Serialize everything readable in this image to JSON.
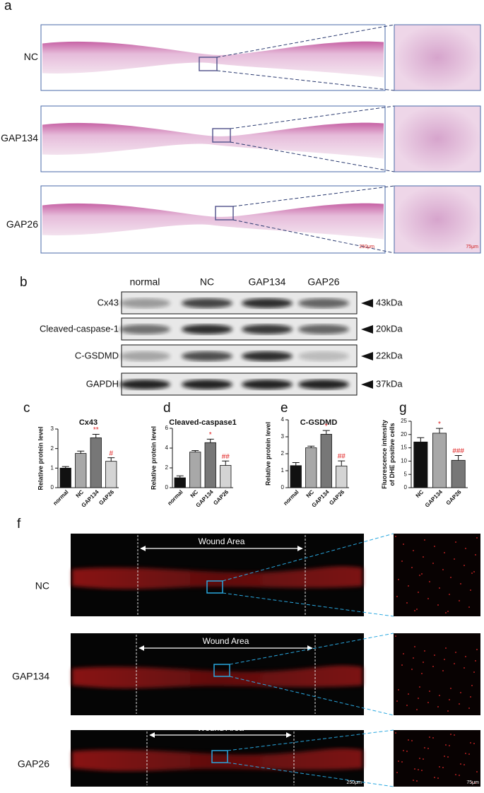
{
  "panel_a": {
    "label": "a",
    "rows": [
      "NC",
      "GAP134",
      "GAP26"
    ],
    "scale_main": "250μm",
    "scale_zoom": "75μm"
  },
  "panel_b": {
    "label": "b",
    "lanes": [
      "normal",
      "NC",
      "GAP134",
      "GAP26"
    ],
    "proteins": [
      {
        "name": "Cx43",
        "size": "43kDa"
      },
      {
        "name": "Cleaved-caspase-1",
        "size": "20kDa"
      },
      {
        "name": "C-GSDMD",
        "size": "22kDa"
      },
      {
        "name": "GAPDH",
        "size": "37kDa"
      }
    ]
  },
  "chart_data": [
    {
      "label": "c",
      "type": "bar",
      "title": "Cx43",
      "ylabel": [
        "Relative protein level"
      ],
      "categories": [
        "normal",
        "NC",
        "GAP134",
        "GAP26"
      ],
      "values": [
        1.0,
        1.75,
        2.55,
        1.35
      ],
      "errors": [
        0.08,
        0.12,
        0.18,
        0.18
      ],
      "colors": [
        "#111111",
        "#a8a8a8",
        "#777777",
        "#d4d4d4"
      ],
      "annotations": [
        null,
        null,
        "**",
        "#"
      ],
      "annotation_color": "#e02020",
      "ylim": [
        0,
        3
      ],
      "yticks": [
        0,
        1,
        2,
        3
      ]
    },
    {
      "label": "d",
      "type": "bar",
      "title": "Cleaved-caspase1",
      "ylabel": [
        "Relative protein level"
      ],
      "categories": [
        "normal",
        "NC",
        "GAP134",
        "GAP26"
      ],
      "values": [
        1.0,
        3.6,
        4.55,
        2.25
      ],
      "errors": [
        0.2,
        0.15,
        0.35,
        0.45
      ],
      "colors": [
        "#111111",
        "#a8a8a8",
        "#777777",
        "#d4d4d4"
      ],
      "annotations": [
        null,
        null,
        "*",
        "##"
      ],
      "annotation_color": "#e02020",
      "ylim": [
        0,
        6
      ],
      "yticks": [
        0,
        2,
        4,
        6
      ]
    },
    {
      "label": "e",
      "type": "bar",
      "title": "C-GSDMD",
      "ylabel": [
        "Relative protein level"
      ],
      "categories": [
        "normal",
        "NC",
        "GAP134",
        "GAP26"
      ],
      "values": [
        1.3,
        2.35,
        3.15,
        1.28
      ],
      "errors": [
        0.18,
        0.1,
        0.22,
        0.3
      ],
      "colors": [
        "#111111",
        "#a8a8a8",
        "#777777",
        "#d4d4d4"
      ],
      "annotations": [
        null,
        null,
        "*",
        "##"
      ],
      "annotation_color": "#e02020",
      "ylim": [
        0,
        4
      ],
      "yticks": [
        0,
        1,
        2,
        3,
        4
      ]
    },
    {
      "label": "g",
      "type": "bar",
      "ylabel": [
        "Fluorescence intensity",
        "of DHE positive cells"
      ],
      "categories": [
        "NC",
        "GAP134",
        "GAP26"
      ],
      "values": [
        17.2,
        20.5,
        10.3
      ],
      "errors": [
        1.6,
        1.8,
        1.8
      ],
      "colors": [
        "#111111",
        "#a8a8a8",
        "#777777"
      ],
      "annotations": [
        null,
        "*",
        "###"
      ],
      "annotation_color": "#e02020",
      "ylim": [
        0,
        25
      ],
      "yticks": [
        0,
        5,
        10,
        15,
        20,
        25
      ]
    }
  ],
  "panel_f": {
    "label": "f",
    "rows": [
      "NC",
      "GAP134",
      "GAP26"
    ],
    "region": "Wound Area",
    "scale_main": "250μm",
    "scale_zoom": "75μm"
  }
}
